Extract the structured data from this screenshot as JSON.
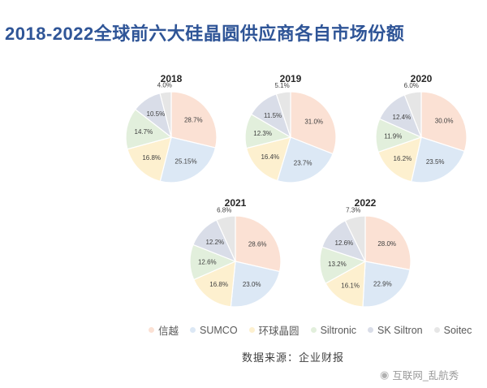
{
  "title": "2018-2022全球前六大硅晶圆供应商各自市场份额",
  "source": "数据来源：企业财报",
  "watermark": "互联网_乱航秀",
  "legend": [
    {
      "name": "信越",
      "color": "#fbe1d4"
    },
    {
      "name": "SUMCO",
      "color": "#dce8f5"
    },
    {
      "name": "环球晶圆",
      "color": "#fdf0cf"
    },
    {
      "name": "Siltronic",
      "color": "#e2efdc"
    },
    {
      "name": "SK Siltron",
      "color": "#d9dde8"
    },
    {
      "name": "Soitec",
      "color": "#e6e6e6"
    }
  ],
  "chart_data": [
    {
      "type": "pie",
      "title": "2018",
      "categories": [
        "信越",
        "SUMCO",
        "环球晶圆",
        "Siltronic",
        "SK Siltron",
        "Soitec"
      ],
      "values": [
        28.7,
        25.15,
        16.8,
        14.7,
        10.5,
        4.0
      ],
      "labels": [
        "28.7%",
        "25.15%",
        "16.8%",
        "14.7%",
        "10.5%",
        "4.0%"
      ]
    },
    {
      "type": "pie",
      "title": "2019",
      "categories": [
        "信越",
        "SUMCO",
        "环球晶圆",
        "Siltronic",
        "SK Siltron",
        "Soitec"
      ],
      "values": [
        31.0,
        23.7,
        16.4,
        12.3,
        11.5,
        5.1
      ],
      "labels": [
        "31.0%",
        "23.7%",
        "16.4%",
        "12.3%",
        "11.5%",
        "5.1%"
      ]
    },
    {
      "type": "pie",
      "title": "2020",
      "categories": [
        "信越",
        "SUMCO",
        "环球晶圆",
        "Siltronic",
        "SK Siltron",
        "Soitec"
      ],
      "values": [
        30.0,
        23.5,
        16.2,
        11.9,
        12.4,
        6.0
      ],
      "labels": [
        "30.0%",
        "23.5%",
        "16.2%",
        "11.9%",
        "12.4%",
        "6.0%"
      ]
    },
    {
      "type": "pie",
      "title": "2021",
      "categories": [
        "信越",
        "SUMCO",
        "环球晶圆",
        "Siltronic",
        "SK Siltron",
        "Soitec"
      ],
      "values": [
        28.6,
        23.0,
        16.8,
        12.6,
        12.2,
        6.8
      ],
      "labels": [
        "28.6%",
        "23.0%",
        "16.8%",
        "12.6%",
        "12.2%",
        "6.8%"
      ]
    },
    {
      "type": "pie",
      "title": "2022",
      "categories": [
        "信越",
        "SUMCO",
        "环球晶圆",
        "Siltronic",
        "SK Siltron",
        "Soitec"
      ],
      "values": [
        28.0,
        22.9,
        16.1,
        13.2,
        12.6,
        7.3
      ],
      "labels": [
        "28.0%",
        "22.9%",
        "16.1%",
        "13.2%",
        "12.6%",
        "7.3%"
      ]
    }
  ]
}
